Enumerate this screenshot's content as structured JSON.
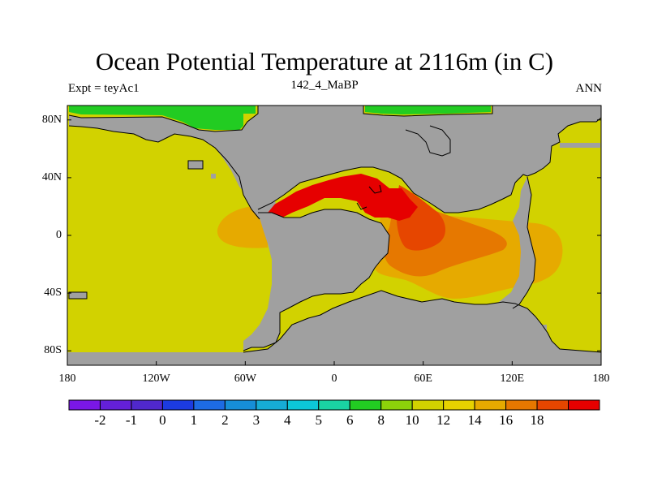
{
  "figure": {
    "title": "Ocean Potential Temperature at 2116m (in C)",
    "left_label": "Expt = teyAc1",
    "center_label": "142_4_MaBP",
    "right_label": "ANN"
  },
  "map": {
    "projection": "cylindrical-equidistant",
    "lon_range": [
      -180,
      180
    ],
    "lat_range": [
      -90,
      90
    ],
    "land_color": "#a0a0a0",
    "y_ticks": [
      {
        "lat": 80,
        "label": "80N"
      },
      {
        "lat": 40,
        "label": "40N"
      },
      {
        "lat": 0,
        "label": "0"
      },
      {
        "lat": -40,
        "label": "40S"
      },
      {
        "lat": -80,
        "label": "80S"
      }
    ],
    "x_ticks": [
      {
        "lon": -180,
        "label": "180"
      },
      {
        "lon": -120,
        "label": "120W"
      },
      {
        "lon": -60,
        "label": "60W"
      },
      {
        "lon": 0,
        "label": "0"
      },
      {
        "lon": 60,
        "label": "60E"
      },
      {
        "lon": 120,
        "label": "120E"
      },
      {
        "lon": 180,
        "label": "180"
      }
    ]
  },
  "colorbar": {
    "colors": [
      "#7a17e6",
      "#6420d9",
      "#5028cc",
      "#1c3be0",
      "#1d6be4",
      "#168ed8",
      "#16acd6",
      "#0cc7d8",
      "#1ad3a3",
      "#22cc22",
      "#8cd20a",
      "#d2d200",
      "#e6d200",
      "#e6aa00",
      "#e67800",
      "#e64600",
      "#e60000"
    ],
    "labels": [
      "-2",
      "-1",
      "0",
      "1",
      "2",
      "3",
      "4",
      "5",
      "6",
      "8",
      "10",
      "12",
      "14",
      "16",
      "18"
    ]
  }
}
